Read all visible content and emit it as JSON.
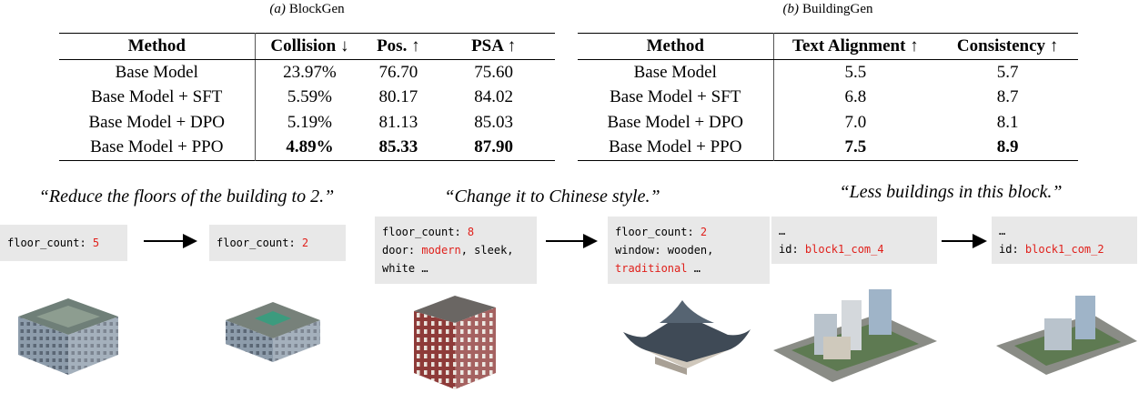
{
  "tables": [
    {
      "label": "(a)",
      "name": "BlockGen",
      "header": [
        "Method",
        "Collision ↓",
        "Pos. ↑",
        "PSA ↑"
      ],
      "rows": [
        [
          "Base Model",
          "23.97%",
          "76.70",
          "75.60"
        ],
        [
          "Base Model + SFT",
          "5.59%",
          "80.17",
          "84.02"
        ],
        [
          "Base Model + DPO",
          "5.19%",
          "81.13",
          "85.03"
        ],
        [
          "Base Model + PPO",
          "4.89%",
          "85.33",
          "87.90"
        ]
      ]
    },
    {
      "label": "(b)",
      "name": "BuildingGen",
      "header": [
        "Method",
        "Text Alignment ↑",
        "Consistency ↑"
      ],
      "rows": [
        [
          "Base Model",
          "5.5",
          "5.7"
        ],
        [
          "Base Model + SFT",
          "6.8",
          "8.7"
        ],
        [
          "Base Model + DPO",
          "7.0",
          "8.1"
        ],
        [
          "Base Model + PPO",
          "7.5",
          "8.9"
        ]
      ]
    }
  ],
  "examples": [
    {
      "instruction": "“Reduce the floors of the building to 2.”",
      "before": [
        [
          {
            "text": "floor_count: "
          },
          {
            "text": "5",
            "red": true
          }
        ]
      ],
      "after": [
        [
          {
            "text": "floor_count: "
          },
          {
            "text": "2",
            "red": true
          }
        ]
      ]
    },
    {
      "instruction": "“Change it to Chinese style.”",
      "before": [
        [
          {
            "text": "floor_count: "
          },
          {
            "text": "8",
            "red": true
          }
        ],
        [
          {
            "text": "door: "
          },
          {
            "text": "modern",
            "red": true
          },
          {
            "text": ", sleek,"
          }
        ],
        [
          {
            "text": "white …"
          }
        ]
      ],
      "after": [
        [
          {
            "text": "floor_count: "
          },
          {
            "text": "2",
            "red": true
          }
        ],
        [
          {
            "text": "window: wooden,"
          }
        ],
        [
          {
            "text": "traditional",
            "red": true
          },
          {
            "text": " …"
          }
        ]
      ]
    },
    {
      "instruction": "“Less buildings in this block.”",
      "before": [
        [
          {
            "text": "…"
          }
        ],
        [
          {
            "text": "id: "
          },
          {
            "text": "block1_com_4",
            "red": true
          }
        ]
      ],
      "after": [
        [
          {
            "text": "…"
          }
        ],
        [
          {
            "text": "id: "
          },
          {
            "text": "block1_com_2",
            "red": true
          }
        ]
      ]
    }
  ]
}
